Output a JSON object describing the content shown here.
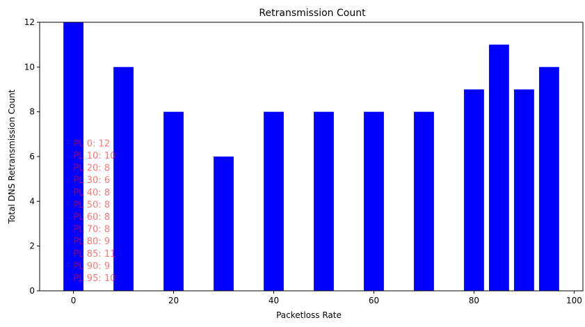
{
  "chart_data": {
    "type": "bar",
    "title": "Retransmission Count",
    "xlabel": "Packetloss Rate",
    "ylabel": "Total DNS Retransmission Count",
    "x": [
      0,
      10,
      20,
      30,
      40,
      50,
      60,
      70,
      80,
      85,
      90,
      95
    ],
    "values": [
      12,
      10,
      8,
      6,
      8,
      8,
      8,
      8,
      9,
      11,
      9,
      10
    ],
    "xlim": [
      -6.75,
      101.75
    ],
    "ylim": [
      0,
      12
    ],
    "xticks": [
      "0",
      "20",
      "40",
      "60",
      "80",
      "100"
    ],
    "yticks": [
      "0",
      "2",
      "4",
      "6",
      "8",
      "10",
      "12"
    ],
    "bar_color": "#0000ff",
    "annotation_color": "#ff0000",
    "annotations": [
      "PL 0: 12",
      "PL 10: 10",
      "PL 20: 8",
      "PL 30: 6",
      "PL 40: 8",
      "PL 50: 8",
      "PL 60: 8",
      "PL 70: 8",
      "PL 80: 9",
      "PL 85: 11",
      "PL 90: 9",
      "PL 95: 10"
    ],
    "grid": false,
    "legend": "none"
  }
}
